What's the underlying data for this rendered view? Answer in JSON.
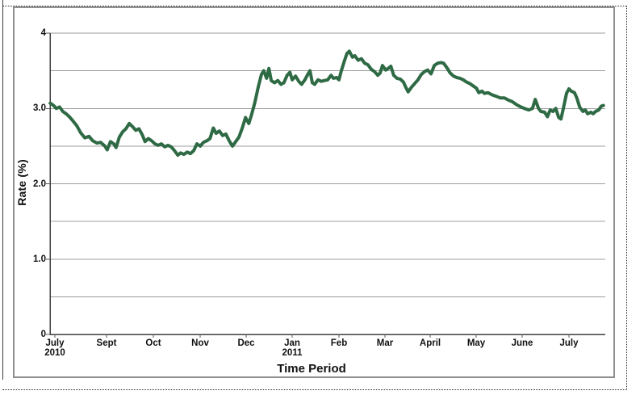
{
  "chart_data": {
    "type": "line",
    "title": "",
    "xlabel": "Time Period",
    "ylabel": "Rate (%)",
    "x_unit": "month index (0 = first July tick, 1 tick per labeled month)",
    "x_ticks": [
      {
        "label": "July",
        "sublabel": "2010"
      },
      {
        "label": "Sept",
        "sublabel": ""
      },
      {
        "label": "Oct",
        "sublabel": ""
      },
      {
        "label": "Nov",
        "sublabel": ""
      },
      {
        "label": "Dec",
        "sublabel": ""
      },
      {
        "label": "Jan",
        "sublabel": "2011"
      },
      {
        "label": "Feb",
        "sublabel": ""
      },
      {
        "label": "Mar",
        "sublabel": ""
      },
      {
        "label": "April",
        "sublabel": ""
      },
      {
        "label": "May",
        "sublabel": ""
      },
      {
        "label": "June",
        "sublabel": ""
      },
      {
        "label": "July",
        "sublabel": ""
      }
    ],
    "y_ticks": [
      {
        "value": 0,
        "label": "0"
      },
      {
        "value": 1,
        "label": "1.0"
      },
      {
        "value": 2,
        "label": "2.0"
      },
      {
        "value": 3,
        "label": "3.0"
      },
      {
        "value": 4,
        "label": "4"
      }
    ],
    "ylim": [
      0,
      4
    ],
    "grid_step": 0.5,
    "grid_on": true,
    "legend": "none",
    "line_color": "#2e6a44",
    "grid_color": "#9c9c9c",
    "axis_color": "#3f3f3f",
    "frame_color": "#8f8f8f",
    "series": [
      {
        "name": "Rate",
        "points": [
          [
            -0.1,
            3.07
          ],
          [
            -0.03,
            3.04
          ],
          [
            0.03,
            3.0
          ],
          [
            0.1,
            3.02
          ],
          [
            0.17,
            2.96
          ],
          [
            0.24,
            2.93
          ],
          [
            0.31,
            2.89
          ],
          [
            0.38,
            2.84
          ],
          [
            0.47,
            2.77
          ],
          [
            0.55,
            2.68
          ],
          [
            0.64,
            2.61
          ],
          [
            0.73,
            2.63
          ],
          [
            0.81,
            2.57
          ],
          [
            0.9,
            2.54
          ],
          [
            0.98,
            2.55
          ],
          [
            1.07,
            2.5
          ],
          [
            1.12,
            2.45
          ],
          [
            1.19,
            2.56
          ],
          [
            1.26,
            2.53
          ],
          [
            1.31,
            2.48
          ],
          [
            1.38,
            2.62
          ],
          [
            1.45,
            2.69
          ],
          [
            1.52,
            2.73
          ],
          [
            1.59,
            2.8
          ],
          [
            1.66,
            2.76
          ],
          [
            1.73,
            2.71
          ],
          [
            1.8,
            2.73
          ],
          [
            1.87,
            2.65
          ],
          [
            1.93,
            2.56
          ],
          [
            2.0,
            2.6
          ],
          [
            2.07,
            2.57
          ],
          [
            2.14,
            2.53
          ],
          [
            2.21,
            2.51
          ],
          [
            2.28,
            2.53
          ],
          [
            2.35,
            2.49
          ],
          [
            2.42,
            2.51
          ],
          [
            2.49,
            2.49
          ],
          [
            2.56,
            2.44
          ],
          [
            2.63,
            2.38
          ],
          [
            2.69,
            2.41
          ],
          [
            2.76,
            2.39
          ],
          [
            2.83,
            2.42
          ],
          [
            2.9,
            2.4
          ],
          [
            2.97,
            2.44
          ],
          [
            3.04,
            2.53
          ],
          [
            3.11,
            2.5
          ],
          [
            3.18,
            2.55
          ],
          [
            3.25,
            2.57
          ],
          [
            3.32,
            2.6
          ],
          [
            3.39,
            2.74
          ],
          [
            3.45,
            2.67
          ],
          [
            3.52,
            2.7
          ],
          [
            3.59,
            2.64
          ],
          [
            3.66,
            2.66
          ],
          [
            3.73,
            2.57
          ],
          [
            3.8,
            2.5
          ],
          [
            3.87,
            2.56
          ],
          [
            3.94,
            2.62
          ],
          [
            4.01,
            2.74
          ],
          [
            4.08,
            2.88
          ],
          [
            4.15,
            2.8
          ],
          [
            4.21,
            2.92
          ],
          [
            4.28,
            3.08
          ],
          [
            4.35,
            3.28
          ],
          [
            4.42,
            3.45
          ],
          [
            4.47,
            3.5
          ],
          [
            4.53,
            3.4
          ],
          [
            4.58,
            3.53
          ],
          [
            4.63,
            3.37
          ],
          [
            4.7,
            3.34
          ],
          [
            4.77,
            3.37
          ],
          [
            4.84,
            3.32
          ],
          [
            4.9,
            3.34
          ],
          [
            4.97,
            3.44
          ],
          [
            5.03,
            3.48
          ],
          [
            5.08,
            3.38
          ],
          [
            5.15,
            3.43
          ],
          [
            5.22,
            3.36
          ],
          [
            5.28,
            3.32
          ],
          [
            5.35,
            3.38
          ],
          [
            5.41,
            3.45
          ],
          [
            5.46,
            3.5
          ],
          [
            5.51,
            3.34
          ],
          [
            5.56,
            3.32
          ],
          [
            5.63,
            3.38
          ],
          [
            5.7,
            3.36
          ],
          [
            5.77,
            3.37
          ],
          [
            5.84,
            3.38
          ],
          [
            5.91,
            3.44
          ],
          [
            5.96,
            3.4
          ],
          [
            6.03,
            3.41
          ],
          [
            6.08,
            3.38
          ],
          [
            6.13,
            3.5
          ],
          [
            6.2,
            3.64
          ],
          [
            6.25,
            3.73
          ],
          [
            6.3,
            3.76
          ],
          [
            6.37,
            3.68
          ],
          [
            6.42,
            3.7
          ],
          [
            6.49,
            3.64
          ],
          [
            6.56,
            3.66
          ],
          [
            6.63,
            3.6
          ],
          [
            6.7,
            3.58
          ],
          [
            6.77,
            3.52
          ],
          [
            6.84,
            3.49
          ],
          [
            6.91,
            3.44
          ],
          [
            6.96,
            3.47
          ],
          [
            7.01,
            3.57
          ],
          [
            7.08,
            3.51
          ],
          [
            7.13,
            3.53
          ],
          [
            7.19,
            3.56
          ],
          [
            7.25,
            3.44
          ],
          [
            7.32,
            3.4
          ],
          [
            7.39,
            3.39
          ],
          [
            7.46,
            3.35
          ],
          [
            7.51,
            3.28
          ],
          [
            7.56,
            3.22
          ],
          [
            7.63,
            3.28
          ],
          [
            7.7,
            3.33
          ],
          [
            7.77,
            3.38
          ],
          [
            7.84,
            3.45
          ],
          [
            7.91,
            3.49
          ],
          [
            7.98,
            3.51
          ],
          [
            8.05,
            3.46
          ],
          [
            8.12,
            3.57
          ],
          [
            8.19,
            3.6
          ],
          [
            8.26,
            3.61
          ],
          [
            8.32,
            3.6
          ],
          [
            8.39,
            3.54
          ],
          [
            8.46,
            3.47
          ],
          [
            8.53,
            3.43
          ],
          [
            8.6,
            3.41
          ],
          [
            8.67,
            3.4
          ],
          [
            8.74,
            3.38
          ],
          [
            8.81,
            3.35
          ],
          [
            8.88,
            3.33
          ],
          [
            8.95,
            3.3
          ],
          [
            9.02,
            3.27
          ],
          [
            9.07,
            3.21
          ],
          [
            9.14,
            3.23
          ],
          [
            9.19,
            3.2
          ],
          [
            9.27,
            3.21
          ],
          [
            9.36,
            3.18
          ],
          [
            9.45,
            3.16
          ],
          [
            9.53,
            3.14
          ],
          [
            9.62,
            3.14
          ],
          [
            9.71,
            3.11
          ],
          [
            9.79,
            3.09
          ],
          [
            9.88,
            3.05
          ],
          [
            9.97,
            3.02
          ],
          [
            10.05,
            3.0
          ],
          [
            10.14,
            2.98
          ],
          [
            10.22,
            3.0
          ],
          [
            10.28,
            3.12
          ],
          [
            10.35,
            3.0
          ],
          [
            10.4,
            2.96
          ],
          [
            10.48,
            2.95
          ],
          [
            10.54,
            2.89
          ],
          [
            10.6,
            2.98
          ],
          [
            10.66,
            2.96
          ],
          [
            10.72,
            3.0
          ],
          [
            10.78,
            2.88
          ],
          [
            10.83,
            2.86
          ],
          [
            10.88,
            3.0
          ],
          [
            10.95,
            3.2
          ],
          [
            11.0,
            3.26
          ],
          [
            11.05,
            3.23
          ],
          [
            11.12,
            3.21
          ],
          [
            11.17,
            3.14
          ],
          [
            11.23,
            3.02
          ],
          [
            11.3,
            2.96
          ],
          [
            11.35,
            2.98
          ],
          [
            11.4,
            2.93
          ],
          [
            11.47,
            2.95
          ],
          [
            11.52,
            2.93
          ],
          [
            11.57,
            2.96
          ],
          [
            11.64,
            2.98
          ],
          [
            11.69,
            3.03
          ],
          [
            11.74,
            3.04
          ]
        ]
      }
    ]
  }
}
